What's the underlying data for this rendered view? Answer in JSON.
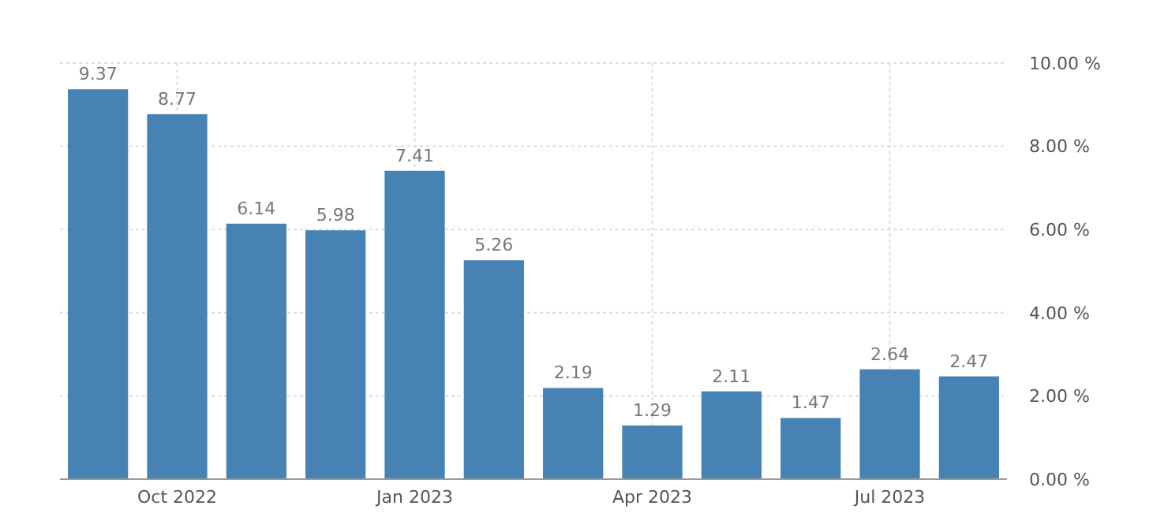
{
  "chart_data": {
    "type": "bar",
    "categories": [
      null,
      "Oct 2022",
      null,
      null,
      "Jan 2023",
      null,
      null,
      "Apr 2023",
      null,
      null,
      "Jul 2023",
      null
    ],
    "values": [
      9.37,
      8.77,
      6.14,
      5.98,
      7.41,
      5.26,
      2.19,
      1.29,
      2.11,
      1.47,
      2.64,
      2.47
    ],
    "color": "#4682b4",
    "ylim": [
      0,
      10
    ],
    "yticks": [
      {
        "value": 0,
        "label": "0.00 %"
      },
      {
        "value": 2,
        "label": "2.00 %"
      },
      {
        "value": 4,
        "label": "4.00 %"
      },
      {
        "value": 6,
        "label": "6.00 %"
      },
      {
        "value": 8,
        "label": "8.00 %"
      },
      {
        "value": 10,
        "label": "10.00 %"
      }
    ],
    "grid": true,
    "data_labels": true
  }
}
